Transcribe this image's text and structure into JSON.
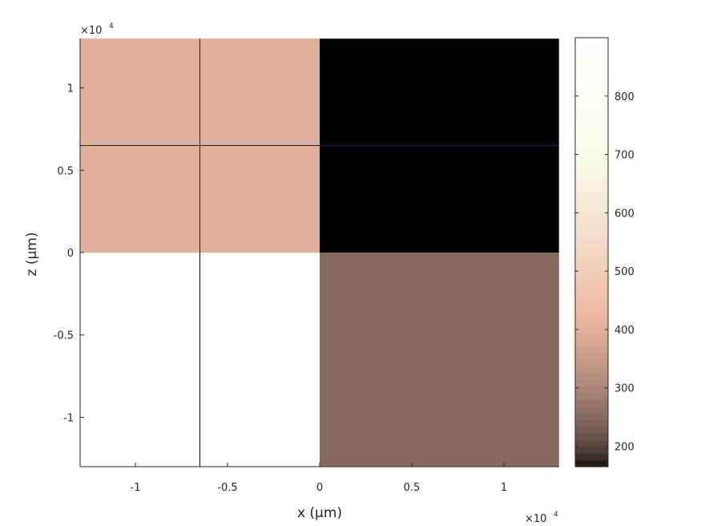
{
  "chart_data": {
    "type": "heatmap",
    "title": "",
    "xlabel": "x (µm)",
    "ylabel": "z (µm)",
    "x_multiplier": "×10",
    "y_multiplier": "×10",
    "multiplier_exponent": "4",
    "xlim": [
      -1.3,
      1.3
    ],
    "ylim": [
      -1.3,
      1.3
    ],
    "x_ticks": [
      -1,
      -0.5,
      0,
      0.5,
      1
    ],
    "x_tick_labels": [
      "-1",
      "-0.5",
      "0",
      "0.5",
      "1"
    ],
    "y_ticks": [
      -1,
      -0.5,
      0,
      0.5,
      1
    ],
    "y_tick_labels": [
      "-1",
      "-0.5",
      "0",
      "0.5",
      "1"
    ],
    "cells": [
      {
        "x0": -1.3,
        "x1": 0,
        "y0": 0,
        "y1": 1.3,
        "value": 400
      },
      {
        "x0": 0,
        "x1": 1.3,
        "y0": 0,
        "y1": 1.3,
        "value": 165
      },
      {
        "x0": -1.3,
        "x1": 0,
        "y0": -1.3,
        "y1": 0,
        "value": 900
      },
      {
        "x0": 0,
        "x1": 1.3,
        "y0": -1.3,
        "y1": 0,
        "value": 250
      }
    ],
    "crosshair": {
      "x": -0.65,
      "z": 0.65
    },
    "colorbar": {
      "colormap": "pink",
      "range": [
        165,
        900
      ],
      "ticks": [
        200,
        300,
        400,
        500,
        600,
        700,
        800
      ],
      "tick_labels": [
        "200",
        "300",
        "400",
        "500",
        "600",
        "700",
        "800"
      ]
    },
    "colors": {
      "crosshair_upper": "#0000ff",
      "crosshair_lower": "#000000"
    }
  }
}
